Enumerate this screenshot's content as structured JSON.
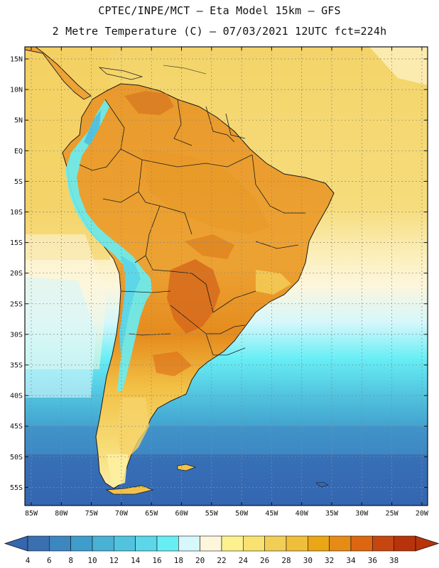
{
  "header": {
    "line1": "CPTEC/INPE/MCT –  Eta Model 15km – GFS",
    "line2": "2 Metre Temperature (C) – 07/03/2021 12UTC fct=224h"
  },
  "axes": {
    "lat_labels": [
      "15N",
      "10N",
      "5N",
      "EQ",
      "5S",
      "10S",
      "15S",
      "20S",
      "25S",
      "30S",
      "35S",
      "40S",
      "45S",
      "50S",
      "55S"
    ],
    "lon_labels": [
      "85W",
      "80W",
      "75W",
      "70W",
      "65W",
      "60W",
      "55W",
      "50W",
      "45W",
      "40W",
      "35W",
      "30W",
      "25W",
      "20W"
    ]
  },
  "colorbar": {
    "labels": [
      "4",
      "6",
      "8",
      "10",
      "12",
      "14",
      "16",
      "18",
      "20",
      "22",
      "24",
      "26",
      "28",
      "30",
      "32",
      "34",
      "36",
      "38"
    ],
    "colors": [
      "#3a6fb0",
      "#3d86c0",
      "#3f9dcc",
      "#49b0d6",
      "#52c3df",
      "#5cd6e8",
      "#67eef5",
      "#d6f7fb",
      "#fdf6dc",
      "#fdf08f",
      "#f9e270",
      "#f3ce55",
      "#f0be3a",
      "#eba616",
      "#e58b16",
      "#dc6710",
      "#c6460f",
      "#b8330a"
    ],
    "min_color": "#3566b0",
    "max_color": "#b8330a"
  },
  "palette": {
    "ocean_tropical": "#f6d86e",
    "ocean_subtropical": "#fbe8a8",
    "ocean_mid": "#7fdfee",
    "ocean_south": "#3f9fd0",
    "ocean_far_south": "#3566b0",
    "land_warm": "#eea335",
    "land_hot": "#d66a1c",
    "andes_cold": "#66dff0",
    "patagonia": "#f1c24a",
    "grid": "#8a8a8a",
    "coast": "#1a1a1a"
  }
}
